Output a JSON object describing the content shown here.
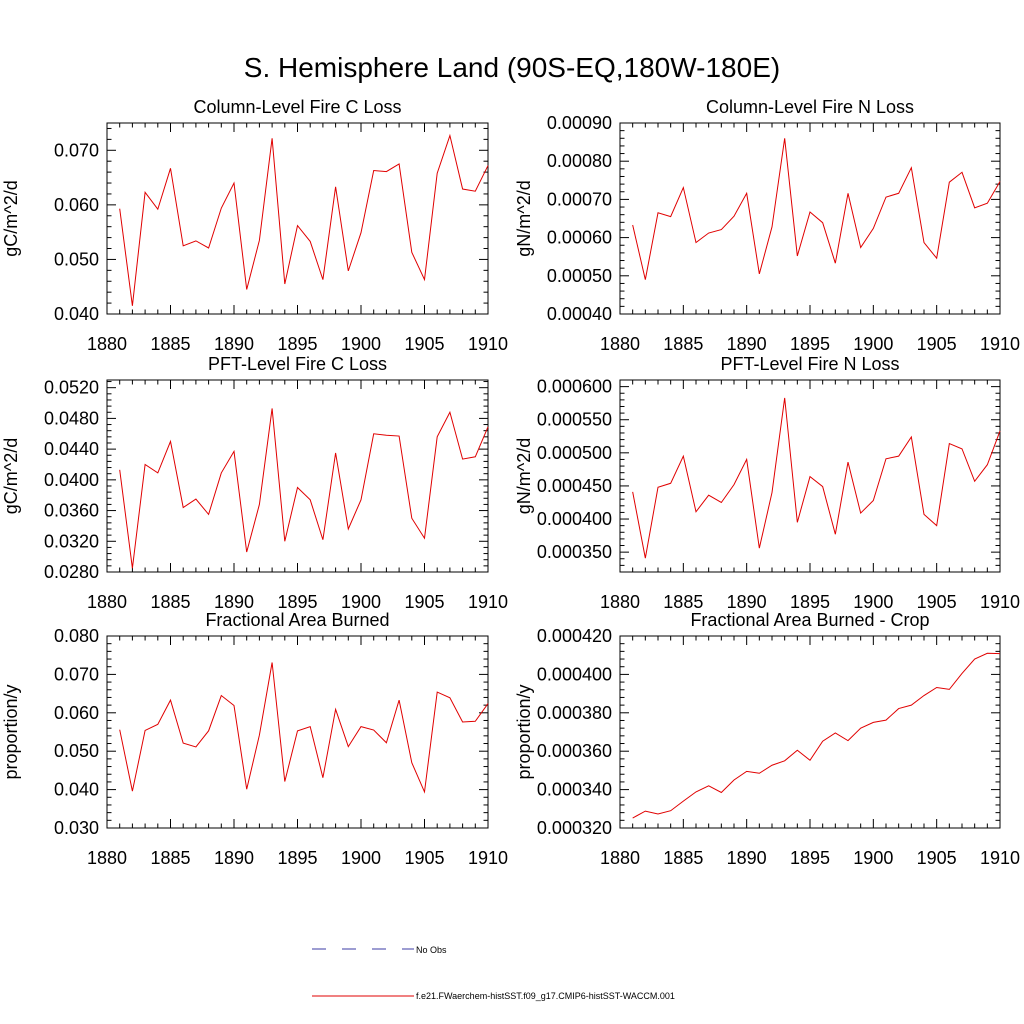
{
  "page_title": "S. Hemisphere Land (90S-EQ,180W-180E)",
  "legend": {
    "obs_label": "No Obs",
    "model_label": "f.e21.FWaerchem-histSST.f09_g17.CMIP6-histSST-WACCM.001",
    "obs_color": "#3b3ba6",
    "model_color": "#e00000"
  },
  "chart_data": [
    {
      "type": "line",
      "title": "Column-Level Fire C Loss",
      "ylabel": "gC/m^2/d",
      "xlim": [
        1880,
        1910
      ],
      "ylim": [
        0.04,
        0.075
      ],
      "xticks": [
        1880,
        1885,
        1890,
        1895,
        1900,
        1905,
        1910
      ],
      "yticks": [
        0.04,
        0.05,
        0.06,
        0.07
      ],
      "ytick_labels": [
        "0.040",
        "0.050",
        "0.060",
        "0.070"
      ],
      "x": [
        1881,
        1882,
        1883,
        1884,
        1885,
        1886,
        1887,
        1888,
        1889,
        1890,
        1891,
        1892,
        1893,
        1894,
        1895,
        1896,
        1897,
        1898,
        1899,
        1900,
        1901,
        1902,
        1903,
        1904,
        1905,
        1906,
        1907,
        1908,
        1909,
        1910
      ],
      "series": [
        {
          "name": "f.e21.FWaerchem-histSST.f09_g17.CMIP6-histSST-WACCM.001",
          "values": [
            0.0593,
            0.0415,
            0.0623,
            0.0592,
            0.0667,
            0.0525,
            0.0534,
            0.0521,
            0.0594,
            0.064,
            0.0445,
            0.0535,
            0.0722,
            0.0455,
            0.0562,
            0.0533,
            0.0463,
            0.0633,
            0.0479,
            0.0549,
            0.0663,
            0.0661,
            0.0675,
            0.0513,
            0.0463,
            0.0658,
            0.0727,
            0.0629,
            0.0625,
            0.0672
          ]
        }
      ]
    },
    {
      "type": "line",
      "title": "Column-Level Fire N Loss",
      "ylabel": "gN/m^2/d",
      "xlim": [
        1880,
        1910
      ],
      "ylim": [
        0.0004,
        0.0009
      ],
      "xticks": [
        1880,
        1885,
        1890,
        1895,
        1900,
        1905,
        1910
      ],
      "yticks": [
        0.0004,
        0.0005,
        0.0006,
        0.0007,
        0.0008,
        0.0009
      ],
      "ytick_labels": [
        "0.00040",
        "0.00050",
        "0.00060",
        "0.00070",
        "0.00080",
        "0.00090"
      ],
      "x": [
        1881,
        1882,
        1883,
        1884,
        1885,
        1886,
        1887,
        1888,
        1889,
        1890,
        1891,
        1892,
        1893,
        1894,
        1895,
        1896,
        1897,
        1898,
        1899,
        1900,
        1901,
        1902,
        1903,
        1904,
        1905,
        1906,
        1907,
        1908,
        1909,
        1910
      ],
      "series": [
        {
          "name": "f.e21.FWaerchem-histSST.f09_g17.CMIP6-histSST-WACCM.001",
          "values": [
            0.000633,
            0.00049,
            0.000665,
            0.000655,
            0.000731,
            0.000587,
            0.000612,
            0.000621,
            0.000656,
            0.000716,
            0.000505,
            0.000628,
            0.00086,
            0.000552,
            0.000667,
            0.000639,
            0.000533,
            0.000716,
            0.000574,
            0.000624,
            0.000706,
            0.000716,
            0.000783,
            0.000587,
            0.000546,
            0.000745,
            0.000771,
            0.000678,
            0.00069,
            0.000747
          ]
        }
      ]
    },
    {
      "type": "line",
      "title": "PFT-Level Fire C Loss",
      "ylabel": "gC/m^2/d",
      "xlim": [
        1880,
        1910
      ],
      "ylim": [
        0.028,
        0.053
      ],
      "xticks": [
        1880,
        1885,
        1890,
        1895,
        1900,
        1905,
        1910
      ],
      "yticks": [
        0.028,
        0.032,
        0.036,
        0.04,
        0.044,
        0.048,
        0.052
      ],
      "ytick_labels": [
        "0.0280",
        "0.0320",
        "0.0360",
        "0.0400",
        "0.0440",
        "0.0480",
        "0.0520"
      ],
      "x": [
        1881,
        1882,
        1883,
        1884,
        1885,
        1886,
        1887,
        1888,
        1889,
        1890,
        1891,
        1892,
        1893,
        1894,
        1895,
        1896,
        1897,
        1898,
        1899,
        1900,
        1901,
        1902,
        1903,
        1904,
        1905,
        1906,
        1907,
        1908,
        1909,
        1910
      ],
      "series": [
        {
          "name": "f.e21.FWaerchem-histSST.f09_g17.CMIP6-histSST-WACCM.001",
          "values": [
            0.0413,
            0.0285,
            0.042,
            0.0409,
            0.045,
            0.0364,
            0.0375,
            0.0355,
            0.0409,
            0.0437,
            0.0306,
            0.0368,
            0.0493,
            0.032,
            0.039,
            0.0374,
            0.0322,
            0.0435,
            0.0336,
            0.0374,
            0.046,
            0.0458,
            0.0457,
            0.035,
            0.0324,
            0.0456,
            0.0488,
            0.0427,
            0.043,
            0.0469
          ]
        }
      ]
    },
    {
      "type": "line",
      "title": "PFT-Level Fire N Loss",
      "ylabel": "gN/m^2/d",
      "xlim": [
        1880,
        1910
      ],
      "ylim": [
        0.00032,
        0.00061
      ],
      "xticks": [
        1880,
        1885,
        1890,
        1895,
        1900,
        1905,
        1910
      ],
      "yticks": [
        0.00035,
        0.0004,
        0.00045,
        0.0005,
        0.00055,
        0.0006
      ],
      "ytick_labels": [
        "0.000350",
        "0.000400",
        "0.000450",
        "0.000500",
        "0.000550",
        "0.000600"
      ],
      "x": [
        1881,
        1882,
        1883,
        1884,
        1885,
        1886,
        1887,
        1888,
        1889,
        1890,
        1891,
        1892,
        1893,
        1894,
        1895,
        1896,
        1897,
        1898,
        1899,
        1900,
        1901,
        1902,
        1903,
        1904,
        1905,
        1906,
        1907,
        1908,
        1909,
        1910
      ],
      "series": [
        {
          "name": "f.e21.FWaerchem-histSST.f09_g17.CMIP6-histSST-WACCM.001",
          "values": [
            0.000441,
            0.000341,
            0.000448,
            0.000454,
            0.000495,
            0.000411,
            0.000436,
            0.000425,
            0.000452,
            0.00049,
            0.000356,
            0.00044,
            0.000583,
            0.000395,
            0.000464,
            0.000449,
            0.000377,
            0.000486,
            0.000409,
            0.000428,
            0.000491,
            0.000495,
            0.000524,
            0.000407,
            0.00039,
            0.000514,
            0.000506,
            0.000457,
            0.000482,
            0.000533
          ]
        }
      ]
    },
    {
      "type": "line",
      "title": "Fractional Area Burned",
      "ylabel": "proportion/y",
      "xlim": [
        1880,
        1910
      ],
      "ylim": [
        0.03,
        0.08
      ],
      "xticks": [
        1880,
        1885,
        1890,
        1895,
        1900,
        1905,
        1910
      ],
      "yticks": [
        0.03,
        0.04,
        0.05,
        0.06,
        0.07,
        0.08
      ],
      "ytick_labels": [
        "0.030",
        "0.040",
        "0.050",
        "0.060",
        "0.070",
        "0.080"
      ],
      "x": [
        1881,
        1882,
        1883,
        1884,
        1885,
        1886,
        1887,
        1888,
        1889,
        1890,
        1891,
        1892,
        1893,
        1894,
        1895,
        1896,
        1897,
        1898,
        1899,
        1900,
        1901,
        1902,
        1903,
        1904,
        1905,
        1906,
        1907,
        1908,
        1909,
        1910
      ],
      "series": [
        {
          "name": "f.e21.FWaerchem-histSST.f09_g17.CMIP6-histSST-WACCM.001",
          "values": [
            0.0556,
            0.0396,
            0.0554,
            0.057,
            0.0633,
            0.0521,
            0.0511,
            0.0553,
            0.0645,
            0.0619,
            0.0401,
            0.0542,
            0.0731,
            0.0421,
            0.0553,
            0.0564,
            0.0431,
            0.0609,
            0.0512,
            0.0564,
            0.0555,
            0.0522,
            0.0633,
            0.047,
            0.0394,
            0.0654,
            0.0639,
            0.0576,
            0.0578,
            0.0624
          ]
        }
      ]
    },
    {
      "type": "line",
      "title": "Fractional Area Burned - Crop",
      "ylabel": "proportion/y",
      "xlim": [
        1880,
        1910
      ],
      "ylim": [
        0.00032,
        0.00042
      ],
      "xticks": [
        1880,
        1885,
        1890,
        1895,
        1900,
        1905,
        1910
      ],
      "yticks": [
        0.00032,
        0.00034,
        0.00036,
        0.00038,
        0.0004,
        0.00042
      ],
      "ytick_labels": [
        "0.000320",
        "0.000340",
        "0.000360",
        "0.000380",
        "0.000400",
        "0.000420"
      ],
      "x": [
        1881,
        1882,
        1883,
        1884,
        1885,
        1886,
        1887,
        1888,
        1889,
        1890,
        1891,
        1892,
        1893,
        1894,
        1895,
        1896,
        1897,
        1898,
        1899,
        1900,
        1901,
        1902,
        1903,
        1904,
        1905,
        1906,
        1907,
        1908,
        1909,
        1910
      ],
      "series": [
        {
          "name": "f.e21.FWaerchem-histSST.f09_g17.CMIP6-histSST-WACCM.001",
          "values": [
            0.0003252,
            0.0003288,
            0.0003273,
            0.000329,
            0.000334,
            0.0003388,
            0.000342,
            0.0003385,
            0.000345,
            0.0003495,
            0.0003485,
            0.0003527,
            0.000355,
            0.0003605,
            0.0003553,
            0.0003652,
            0.0003695,
            0.0003655,
            0.000372,
            0.000375,
            0.0003762,
            0.0003822,
            0.000384,
            0.000389,
            0.0003932,
            0.0003922,
            0.0004005,
            0.000408,
            0.000411,
            0.0004108
          ]
        }
      ]
    }
  ]
}
